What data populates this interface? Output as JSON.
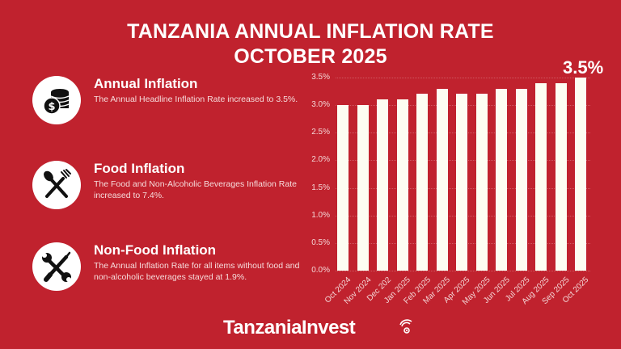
{
  "title": {
    "line1": "TANZANIA ANNUAL INFLATION RATE",
    "line2": "OCTOBER 2025"
  },
  "items": [
    {
      "icon": "coins-dollar-icon",
      "heading": "Annual Inflation",
      "text": "The Annual Headline Inflation Rate increased to 3.5%."
    },
    {
      "icon": "spoon-fork-icon",
      "heading": "Food Inflation",
      "text": "The Food and Non-Alcoholic Beverages Inflation Rate increased to 7.4%."
    },
    {
      "icon": "wrench-screwdriver-icon",
      "heading": "Non-Food Inflation",
      "text": "The Annual Inflation Rate for all items without food and non-alcoholic beverages stayed at 1.9%."
    }
  ],
  "callout": "3.5%",
  "logo": {
    "text": "TanzaniaInvest"
  },
  "colors": {
    "background": "#c0222e",
    "bar": "#fdfdf2",
    "text": "#ffffff"
  },
  "chart_data": {
    "type": "bar",
    "title": "Tanzania Annual Inflation Rate October 2025",
    "xlabel": "",
    "ylabel": "",
    "categories": [
      "Oct 2024",
      "Nov 2024",
      "Dec 202",
      "Jan 2025",
      "Feb 2025",
      "Mar 2025",
      "Apr 2025",
      "May 2025",
      "Jun 2025",
      "Jul 2025",
      "Aug 2025",
      "Sep 2025",
      "Oct 2025"
    ],
    "values": [
      3.0,
      3.0,
      3.1,
      3.1,
      3.2,
      3.3,
      3.2,
      3.2,
      3.3,
      3.3,
      3.4,
      3.4,
      3.5
    ],
    "yticks": [
      "0.0%",
      "0.5%",
      "1.0%",
      "1.5%",
      "2.0%",
      "2.5%",
      "3.0%",
      "3.5%"
    ],
    "ylim": [
      0,
      3.5
    ],
    "grid": true,
    "annotations": [
      {
        "category": "Oct 2025",
        "text": "3.5%"
      }
    ]
  }
}
